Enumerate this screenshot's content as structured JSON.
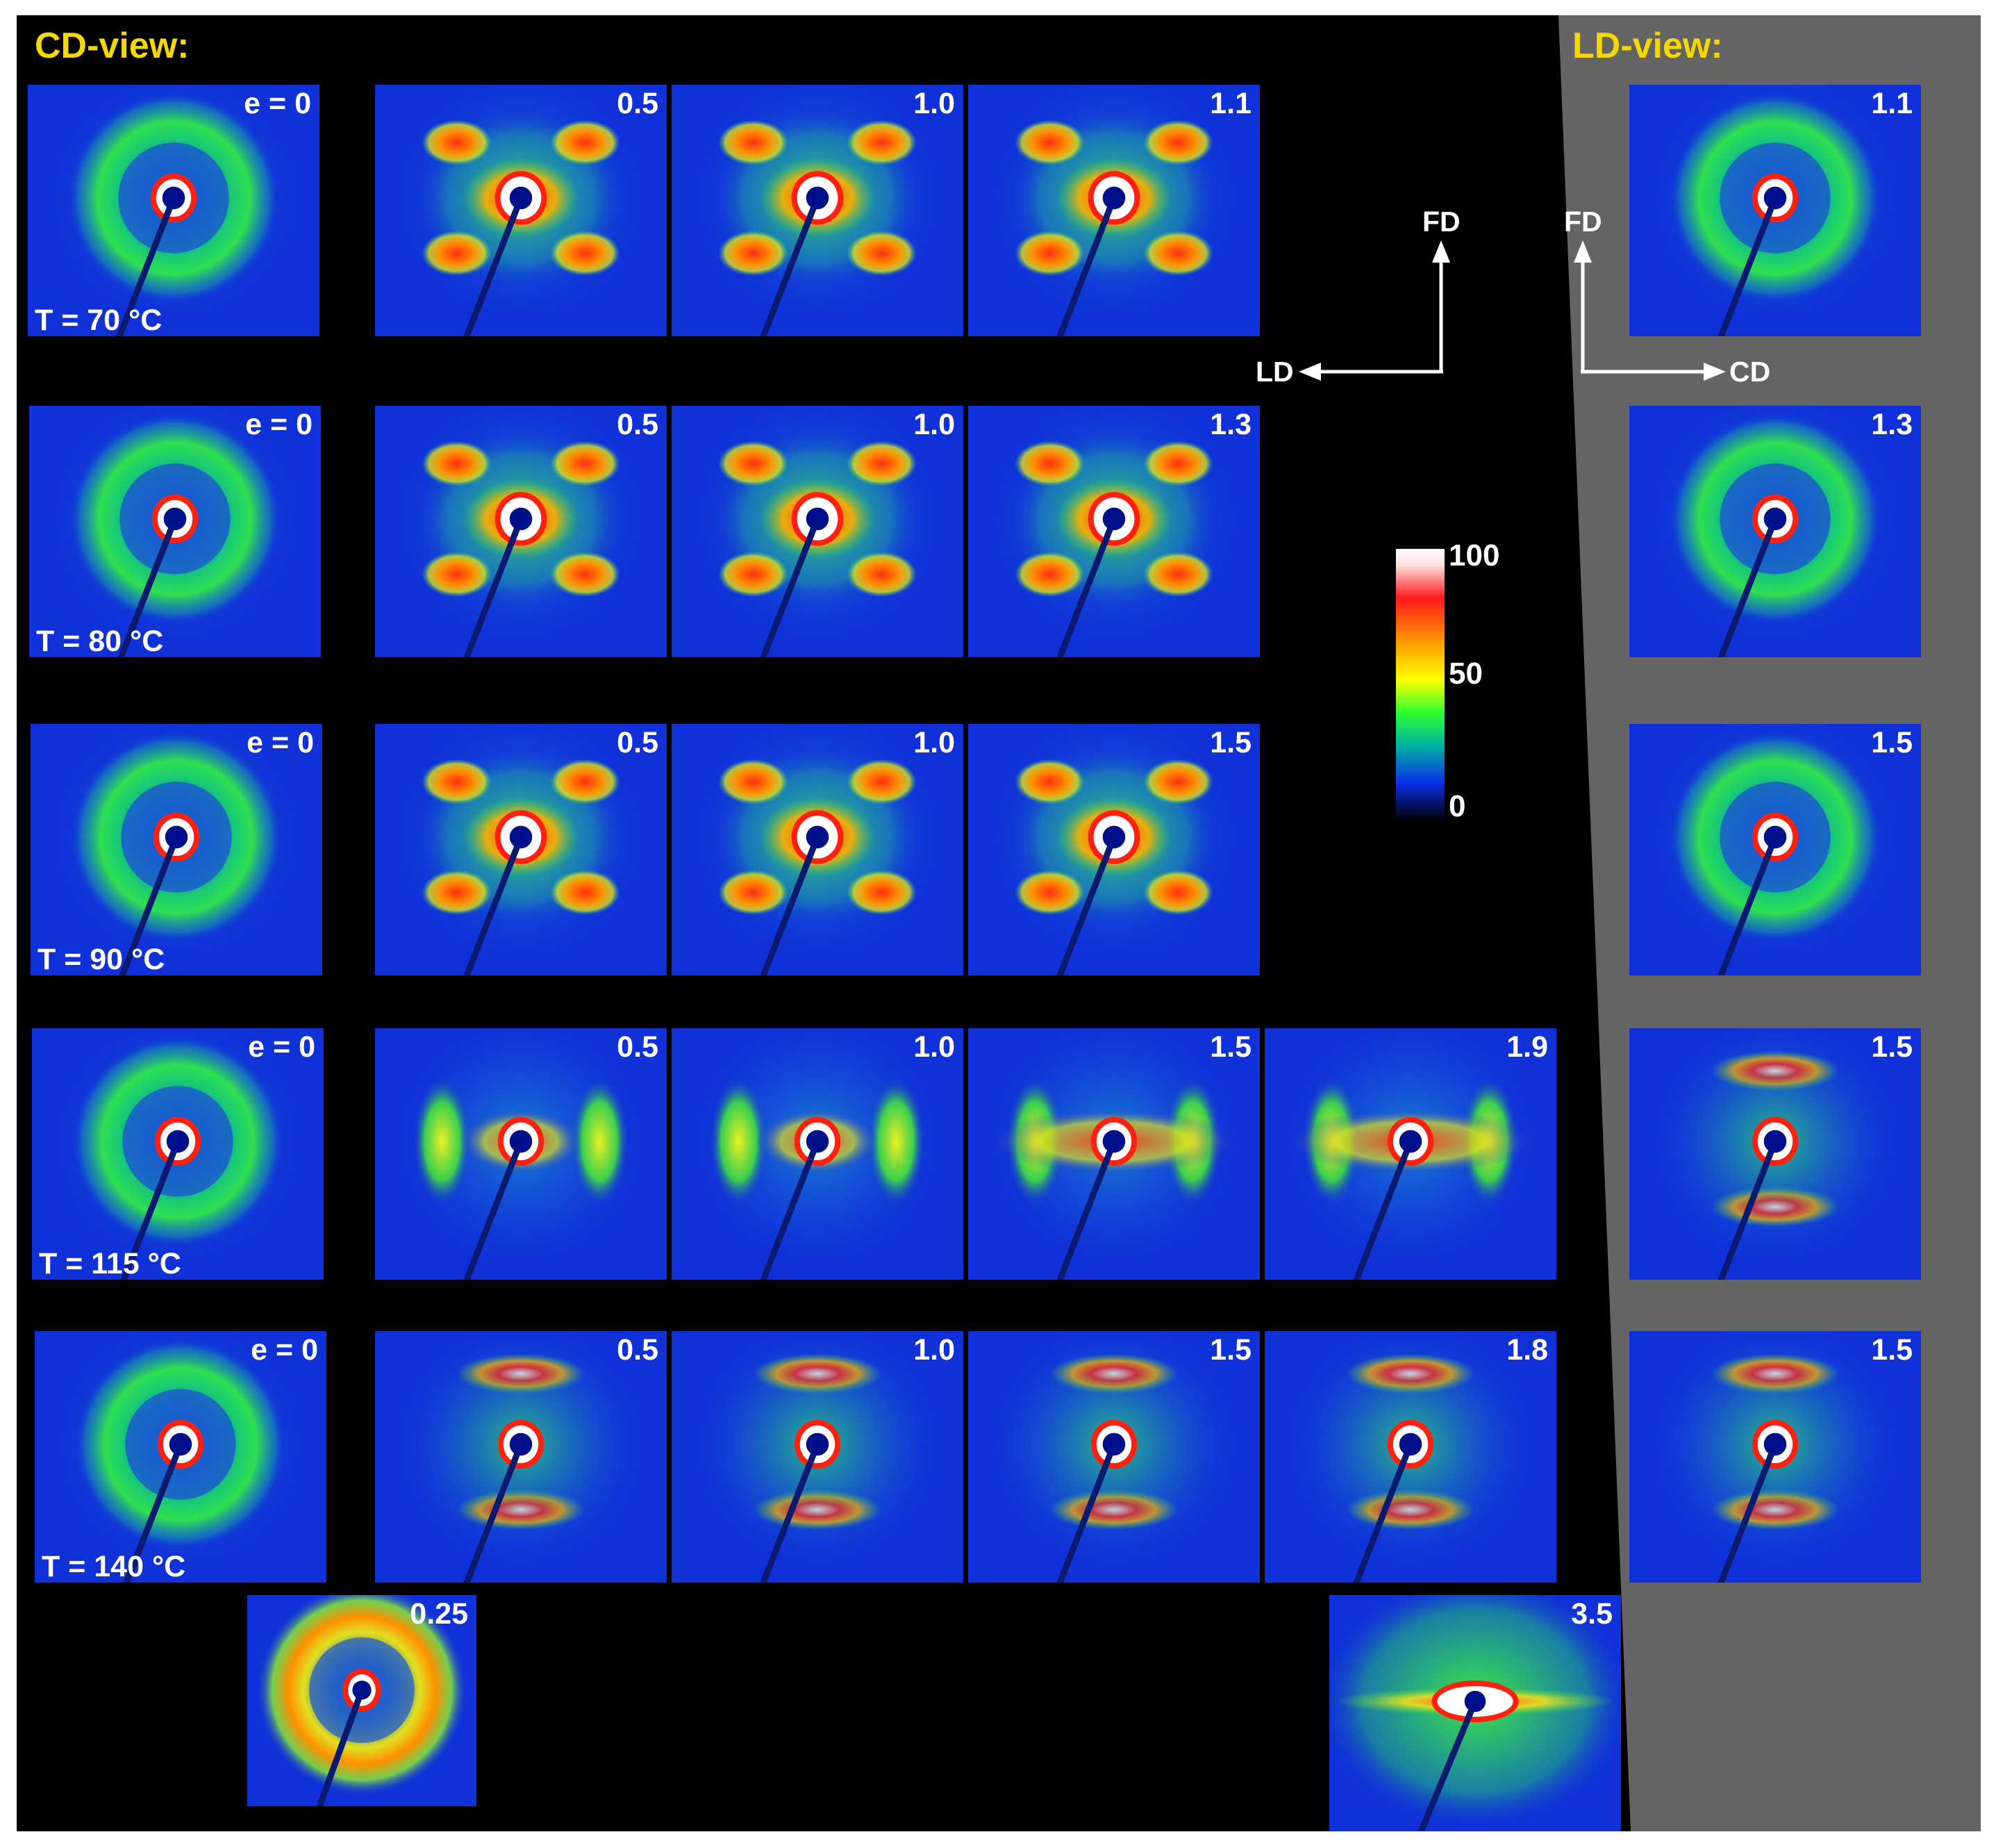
{
  "figure": {
    "cd_view_title": "CD-view:",
    "ld_view_title": "LD-view:",
    "axes_cd": {
      "up_label": "FD",
      "left_label": "LD"
    },
    "axes_ld": {
      "up_label": "FD",
      "right_label": "CD"
    },
    "colorbar": {
      "max_label": "100",
      "mid_label": "50",
      "min_label": "0"
    },
    "temperatures": [
      "T = 70 °C",
      "T = 80 °C",
      "T = 90 °C",
      "T = 115 °C",
      "T = 140 °C"
    ],
    "rows": [
      {
        "cd_labels": [
          "e = 0",
          "0.5",
          "1.0",
          "1.1"
        ],
        "ld_label": "1.1"
      },
      {
        "cd_labels": [
          "e = 0",
          "0.5",
          "1.0",
          "1.3"
        ],
        "ld_label": "1.3"
      },
      {
        "cd_labels": [
          "e = 0",
          "0.5",
          "1.0",
          "1.5"
        ],
        "ld_label": "1.5"
      },
      {
        "cd_labels": [
          "e = 0",
          "0.5",
          "1.0",
          "1.5",
          "1.9"
        ],
        "ld_label": "1.5"
      },
      {
        "cd_labels": [
          "e = 0",
          "0.5",
          "1.0",
          "1.5",
          "1.8"
        ],
        "ld_label": "1.5"
      }
    ],
    "extra_panels": [
      "0.25",
      "3.5"
    ],
    "colors": {
      "background": "#000000",
      "ld_background": "#646464",
      "title_color": "#f5d800",
      "pattern_base": "#1030d8"
    }
  }
}
